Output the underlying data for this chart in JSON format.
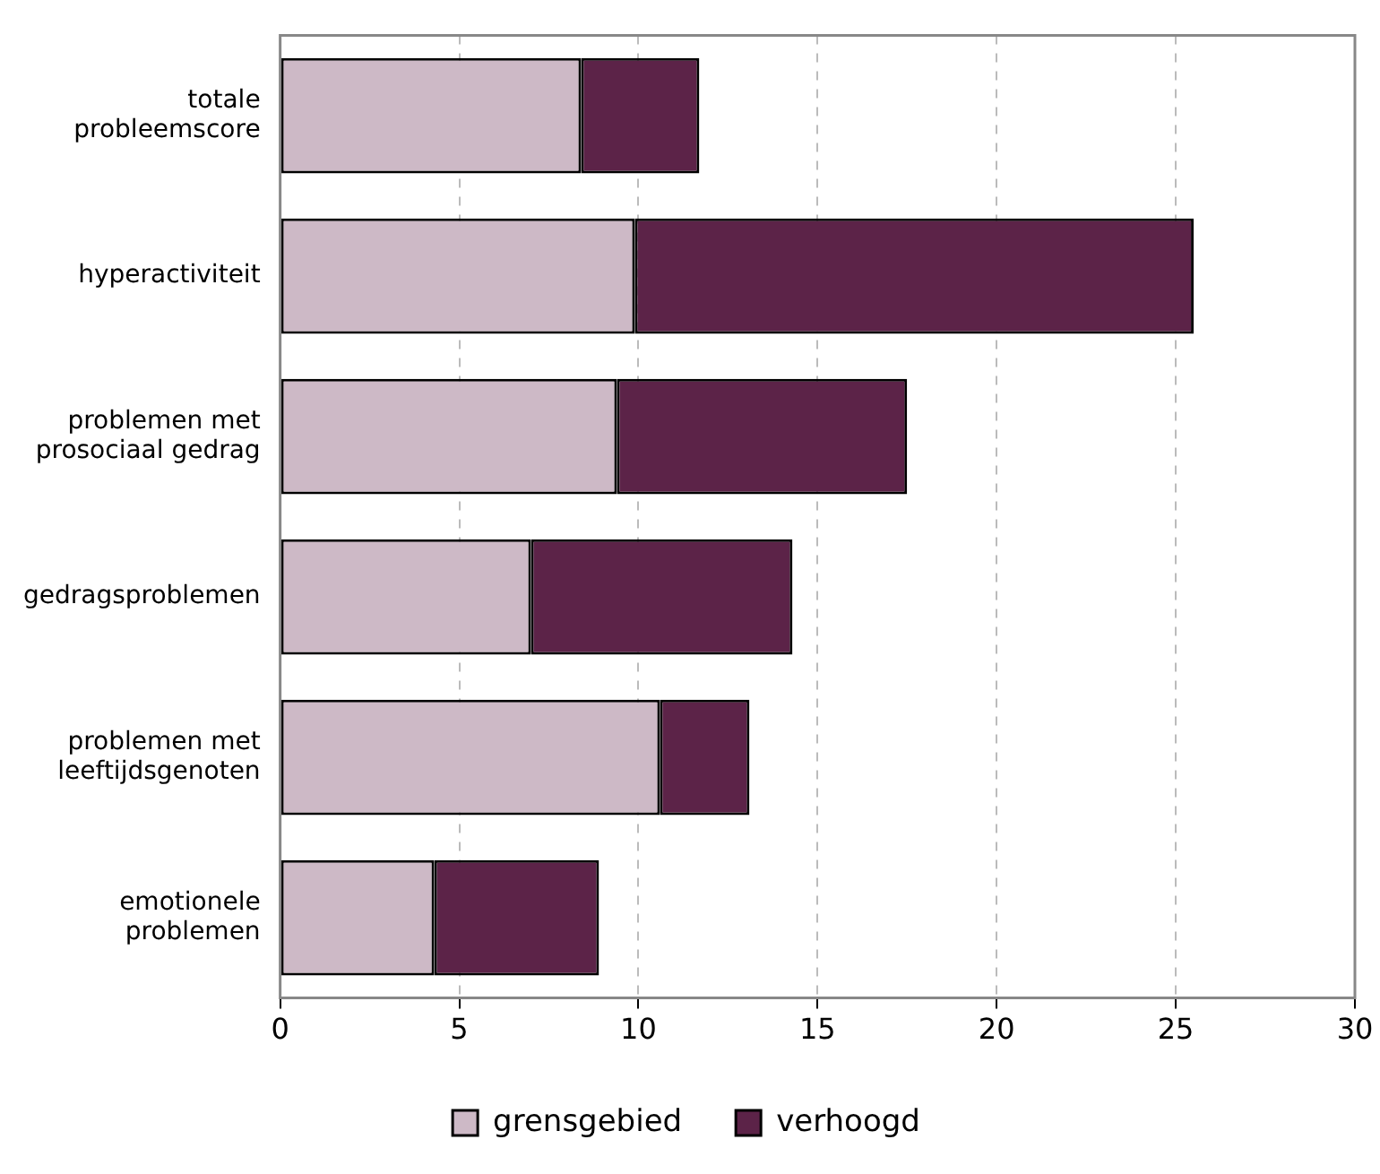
{
  "chart_data": {
    "type": "bar",
    "orientation": "horizontal",
    "stacked": true,
    "categories": [
      "totale probleemscore",
      "hyperactiviteit",
      "problemen met prosociaal gedrag",
      "gedragsproblemen",
      "problemen met leeftijdsgenoten",
      "emotionele problemen"
    ],
    "series": [
      {
        "name": "grensgebied",
        "color": "#cdb9c6",
        "values": [
          8.4,
          9.9,
          9.4,
          7.0,
          10.6,
          4.3
        ]
      },
      {
        "name": "verhoogd",
        "color": "#5c2348",
        "values": [
          3.3,
          15.6,
          8.1,
          7.3,
          2.5,
          4.6
        ]
      }
    ],
    "xlim": [
      0,
      30
    ],
    "xticks": [
      0,
      5,
      10,
      15,
      20,
      25,
      30
    ],
    "grid": "x",
    "legend": "bottom"
  }
}
